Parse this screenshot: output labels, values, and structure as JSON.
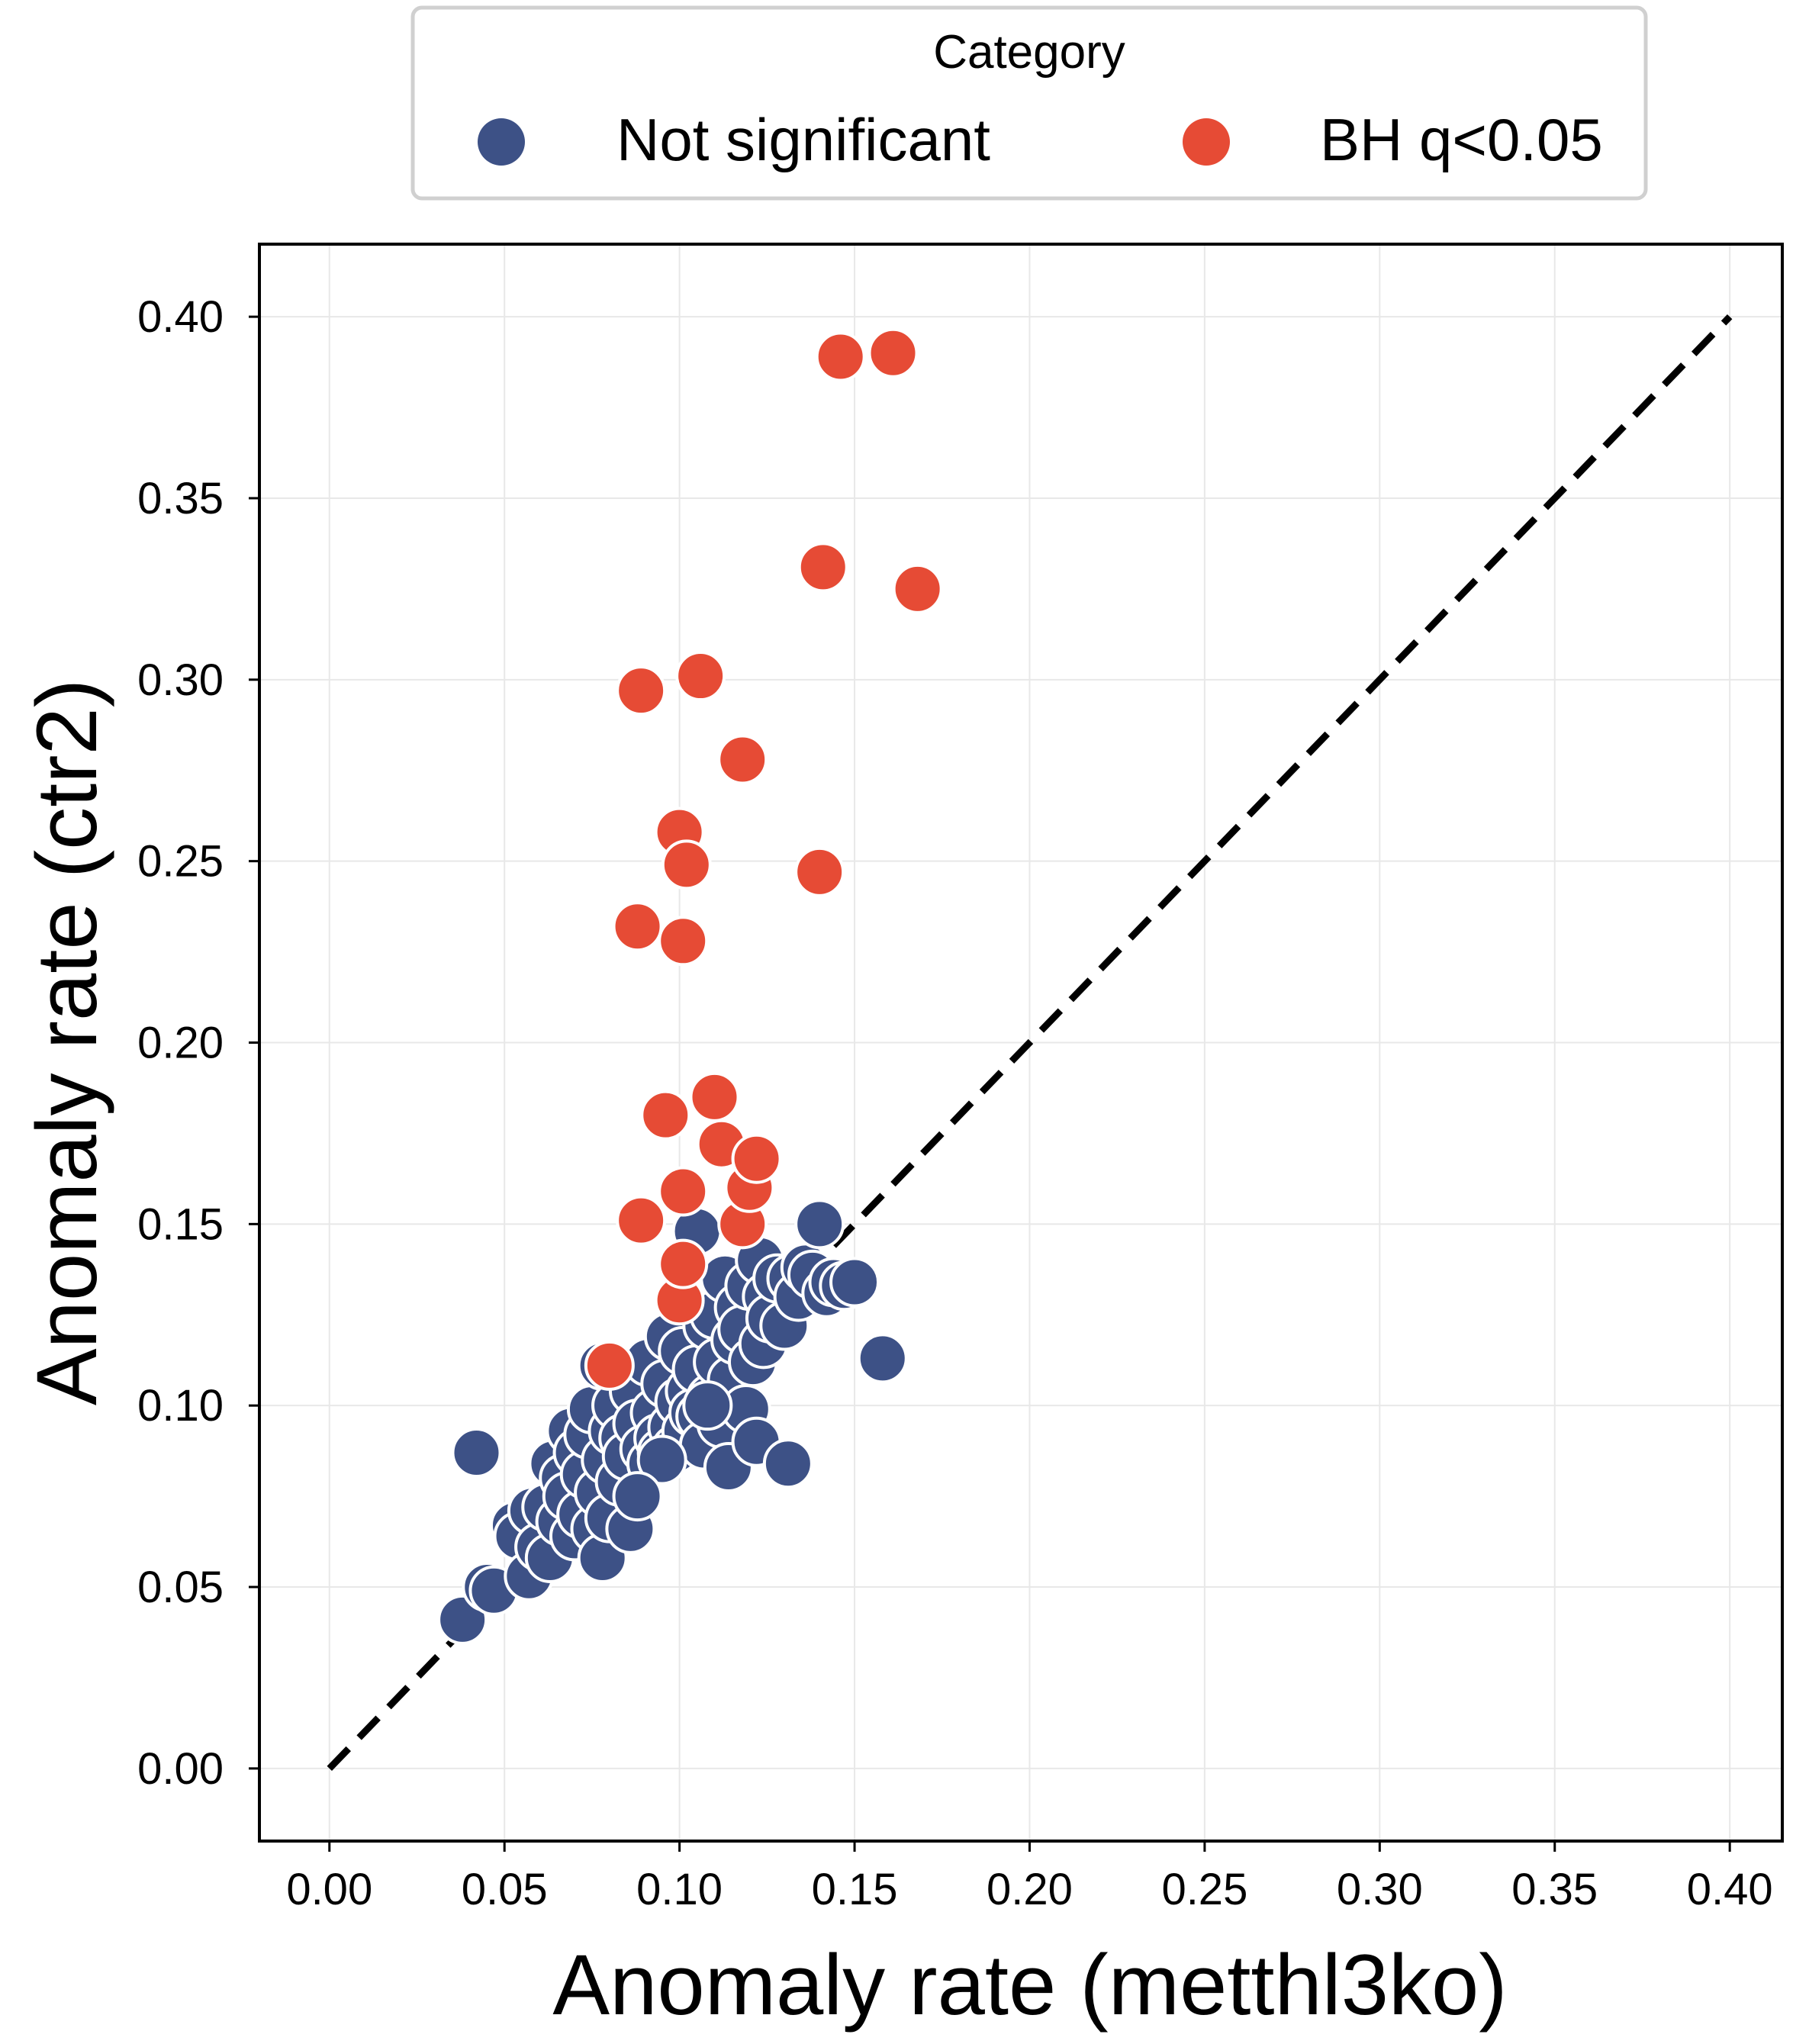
{
  "chart_data": {
    "type": "scatter",
    "title": "",
    "xlabel": "Anomaly rate (metthl3ko)",
    "ylabel": "Anomaly rate (ctr2)",
    "xlim": [
      -0.02,
      0.415
    ],
    "ylim": [
      -0.02,
      0.42
    ],
    "xticks": [
      "0.00",
      "0.05",
      "0.10",
      "0.15",
      "0.20",
      "0.25",
      "0.30",
      "0.35",
      "0.40"
    ],
    "yticks": [
      "0.00",
      "0.05",
      "0.10",
      "0.15",
      "0.20",
      "0.25",
      "0.30",
      "0.35",
      "0.40"
    ],
    "grid": true,
    "reference_line": {
      "type": "y=x",
      "style": "dashed",
      "color": "#000000",
      "from": [
        0,
        0
      ],
      "to": [
        0.4,
        0.4
      ]
    },
    "legend": {
      "title": "Category",
      "placement": "top-center, outside",
      "entries": [
        {
          "label": "Not significant",
          "color": "#3d5186"
        },
        {
          "label": "BH q<0.05",
          "color": "#e64b35"
        }
      ]
    },
    "series": [
      {
        "name": "Not significant",
        "color": "#3d5186",
        "points": [
          [
            0.038,
            0.041
          ],
          [
            0.042,
            0.087
          ],
          [
            0.045,
            0.05
          ],
          [
            0.047,
            0.049
          ],
          [
            0.053,
            0.067
          ],
          [
            0.054,
            0.064
          ],
          [
            0.057,
            0.053
          ],
          [
            0.058,
            0.071
          ],
          [
            0.06,
            0.061
          ],
          [
            0.062,
            0.072
          ],
          [
            0.063,
            0.058
          ],
          [
            0.064,
            0.084
          ],
          [
            0.066,
            0.068
          ],
          [
            0.067,
            0.08
          ],
          [
            0.068,
            0.075
          ],
          [
            0.069,
            0.093
          ],
          [
            0.07,
            0.064
          ],
          [
            0.071,
            0.087
          ],
          [
            0.072,
            0.07
          ],
          [
            0.073,
            0.081
          ],
          [
            0.074,
            0.092
          ],
          [
            0.075,
            0.099
          ],
          [
            0.076,
            0.066
          ],
          [
            0.077,
            0.076
          ],
          [
            0.078,
            0.111
          ],
          [
            0.078,
            0.058
          ],
          [
            0.079,
            0.085
          ],
          [
            0.08,
            0.069
          ],
          [
            0.081,
            0.093
          ],
          [
            0.082,
            0.1
          ],
          [
            0.083,
            0.079
          ],
          [
            0.084,
            0.091
          ],
          [
            0.085,
            0.086
          ],
          [
            0.086,
            0.066
          ],
          [
            0.087,
            0.104
          ],
          [
            0.088,
            0.095
          ],
          [
            0.09,
            0.088
          ],
          [
            0.091,
            0.112
          ],
          [
            0.092,
            0.084
          ],
          [
            0.093,
            0.098
          ],
          [
            0.094,
            0.091
          ],
          [
            0.095,
            0.087
          ],
          [
            0.096,
            0.106
          ],
          [
            0.097,
            0.119
          ],
          [
            0.098,
            0.094
          ],
          [
            0.099,
            0.088
          ],
          [
            0.1,
            0.101
          ],
          [
            0.101,
            0.115
          ],
          [
            0.102,
            0.093
          ],
          [
            0.103,
            0.104
          ],
          [
            0.104,
            0.098
          ],
          [
            0.105,
            0.11
          ],
          [
            0.106,
            0.097
          ],
          [
            0.107,
            0.089
          ],
          [
            0.108,
            0.122
          ],
          [
            0.109,
            0.102
          ],
          [
            0.11,
            0.125
          ],
          [
            0.111,
            0.112
          ],
          [
            0.112,
            0.095
          ],
          [
            0.113,
            0.135
          ],
          [
            0.114,
            0.083
          ],
          [
            0.115,
            0.107
          ],
          [
            0.116,
            0.118
          ],
          [
            0.117,
            0.127
          ],
          [
            0.118,
            0.121
          ],
          [
            0.119,
            0.099
          ],
          [
            0.12,
            0.133
          ],
          [
            0.121,
            0.112
          ],
          [
            0.122,
            0.09
          ],
          [
            0.123,
            0.14
          ],
          [
            0.124,
            0.117
          ],
          [
            0.125,
            0.13
          ],
          [
            0.126,
            0.124
          ],
          [
            0.128,
            0.135
          ],
          [
            0.13,
            0.122
          ],
          [
            0.131,
            0.084
          ],
          [
            0.132,
            0.135
          ],
          [
            0.134,
            0.13
          ],
          [
            0.136,
            0.138
          ],
          [
            0.138,
            0.136
          ],
          [
            0.14,
            0.15
          ],
          [
            0.142,
            0.131
          ],
          [
            0.144,
            0.134
          ],
          [
            0.147,
            0.133
          ],
          [
            0.15,
            0.134
          ],
          [
            0.158,
            0.113
          ],
          [
            0.105,
            0.148
          ],
          [
            0.095,
            0.085
          ],
          [
            0.088,
            0.075
          ],
          [
            0.108,
            0.1
          ]
        ]
      },
      {
        "name": "BH q<0.05",
        "color": "#e64b35",
        "points": [
          [
            0.08,
            0.111
          ],
          [
            0.088,
            0.232
          ],
          [
            0.089,
            0.297
          ],
          [
            0.089,
            0.151
          ],
          [
            0.096,
            0.18
          ],
          [
            0.1,
            0.129
          ],
          [
            0.1,
            0.258
          ],
          [
            0.101,
            0.139
          ],
          [
            0.101,
            0.228
          ],
          [
            0.101,
            0.159
          ],
          [
            0.102,
            0.249
          ],
          [
            0.106,
            0.301
          ],
          [
            0.11,
            0.185
          ],
          [
            0.112,
            0.172
          ],
          [
            0.118,
            0.15
          ],
          [
            0.118,
            0.278
          ],
          [
            0.12,
            0.16
          ],
          [
            0.122,
            0.168
          ],
          [
            0.14,
            0.247
          ],
          [
            0.141,
            0.331
          ],
          [
            0.146,
            0.389
          ],
          [
            0.161,
            0.39
          ],
          [
            0.168,
            0.325
          ]
        ]
      }
    ]
  }
}
